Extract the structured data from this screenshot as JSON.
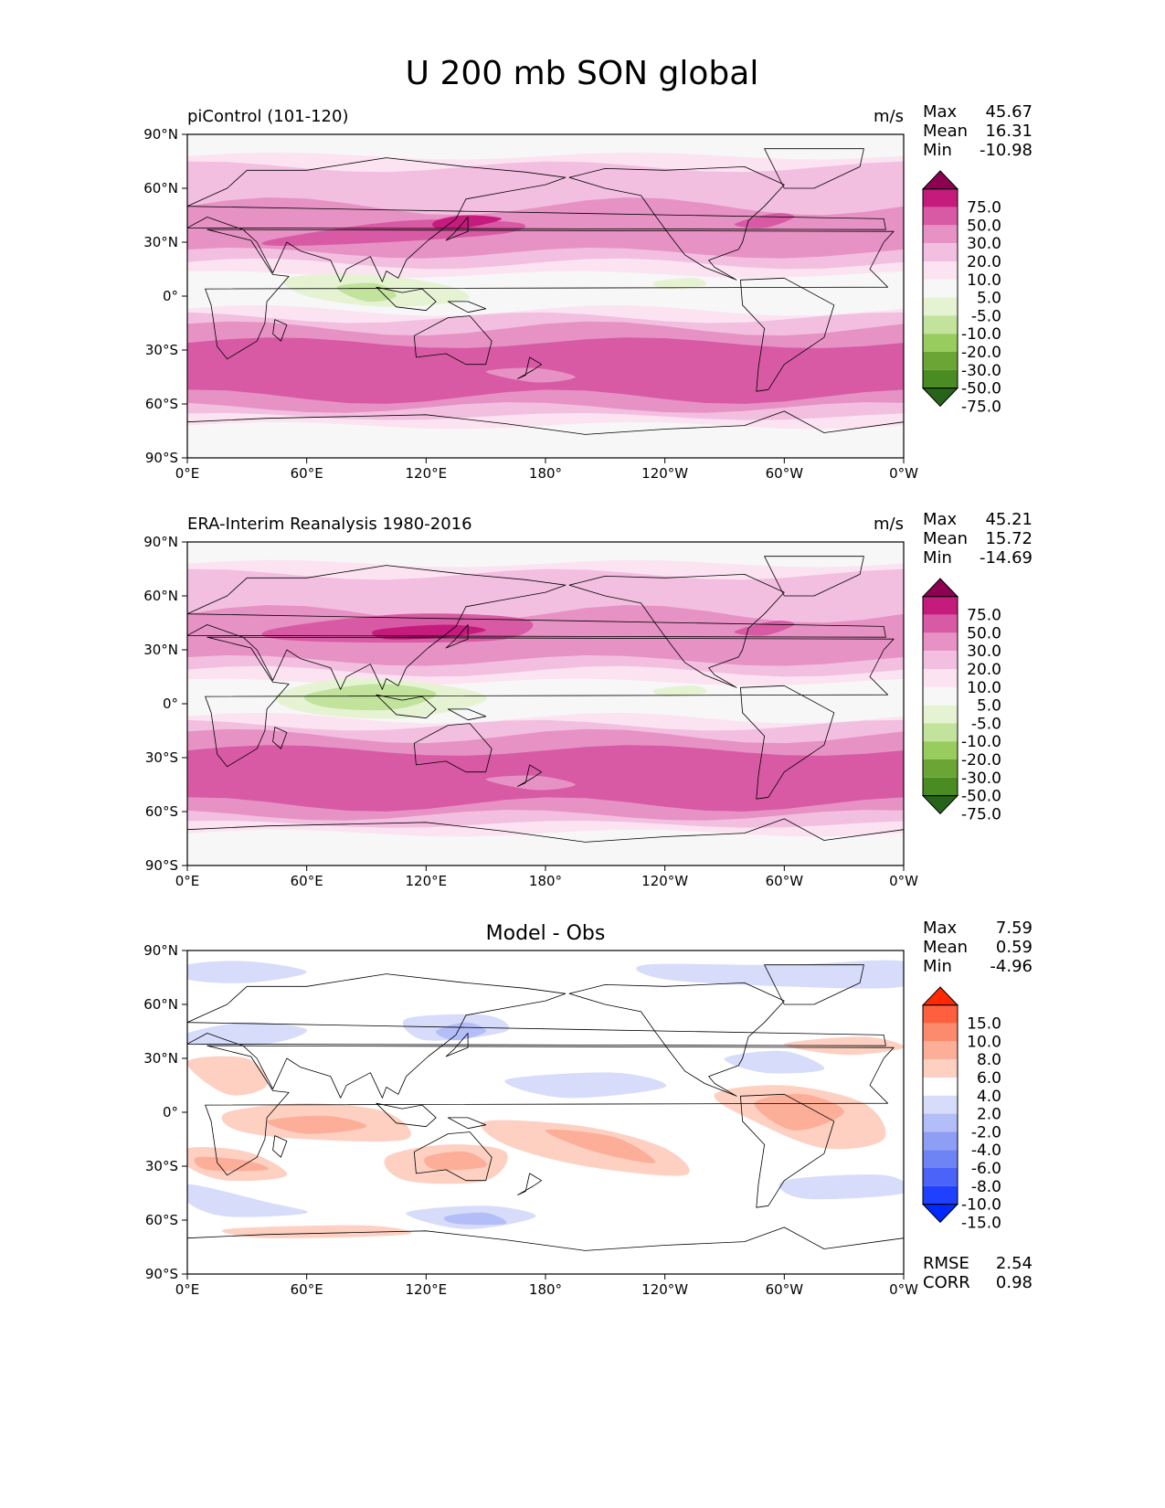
{
  "figure": {
    "title": "U 200 mb SON global"
  },
  "axes": {
    "lat_ticks": [
      "90°N",
      "60°N",
      "30°N",
      "0°",
      "30°S",
      "60°S",
      "90°S"
    ],
    "lon_ticks": [
      "0°E",
      "60°E",
      "120°E",
      "180°",
      "120°W",
      "60°W",
      "0°W"
    ]
  },
  "panels": [
    {
      "title": "piControl (101-120)",
      "units": "m/s",
      "stats": [
        {
          "label": "Max",
          "value": "45.67"
        },
        {
          "label": "Mean",
          "value": "16.31"
        },
        {
          "label": "Min",
          "value": "-10.98"
        }
      ],
      "colorbar": "field"
    },
    {
      "title": "ERA-Interim Reanalysis 1980-2016",
      "units": "m/s",
      "stats": [
        {
          "label": "Max",
          "value": "45.21"
        },
        {
          "label": "Mean",
          "value": "15.72"
        },
        {
          "label": "Min",
          "value": "-14.69"
        }
      ],
      "colorbar": "field"
    },
    {
      "title": "Model - Obs",
      "units": "",
      "stats": [
        {
          "label": "Max",
          "value": "7.59"
        },
        {
          "label": "Mean",
          "value": "0.59"
        },
        {
          "label": "Min",
          "value": "-4.96"
        }
      ],
      "colorbar": "diff",
      "extra_stats": [
        {
          "label": "RMSE",
          "value": "2.54"
        },
        {
          "label": "CORR",
          "value": "0.98"
        }
      ]
    }
  ],
  "colorbars": {
    "field": {
      "labels": [
        "75.0",
        "50.0",
        "30.0",
        "20.0",
        "10.0",
        "5.0",
        "-5.0",
        "-10.0",
        "-20.0",
        "-30.0",
        "-50.0",
        "-75.0"
      ],
      "colors": [
        "#8e0152",
        "#c51b7d",
        "#d85aa4",
        "#e792c4",
        "#f3bfe0",
        "#fce3f1",
        "#f7f7f7",
        "#e5f3d3",
        "#c1e39c",
        "#98cc5f",
        "#6ba536",
        "#4a8b22",
        "#276419"
      ]
    },
    "diff": {
      "labels": [
        "15.0",
        "10.0",
        "8.0",
        "6.0",
        "4.0",
        "2.0",
        "-2.0",
        "-4.0",
        "-6.0",
        "-8.0",
        "-10.0",
        "-15.0"
      ],
      "colors": [
        "#ff2800",
        "#fe5f3e",
        "#fc8b6e",
        "#fcae98",
        "#fdd0c2",
        "#ffffff",
        "#d6dcfa",
        "#b3bdf7",
        "#8e9ef5",
        "#6e84f5",
        "#4a63f8",
        "#1f40ff",
        "#0028ff"
      ]
    }
  },
  "contour_level_colors": {
    "field": {
      "5": "#fce3f1",
      "10": "#f3bfe0",
      "20": "#e792c4",
      "30": "#d85aa4",
      "50": "#c51b7d",
      "-5": "#e5f3d3",
      "-10": "#c1e39c"
    },
    "diff": {
      "2": "#fdd0c2",
      "4": "#fcae98",
      "-2": "#d6dcfa",
      "-4": "#b3bdf7"
    }
  }
}
